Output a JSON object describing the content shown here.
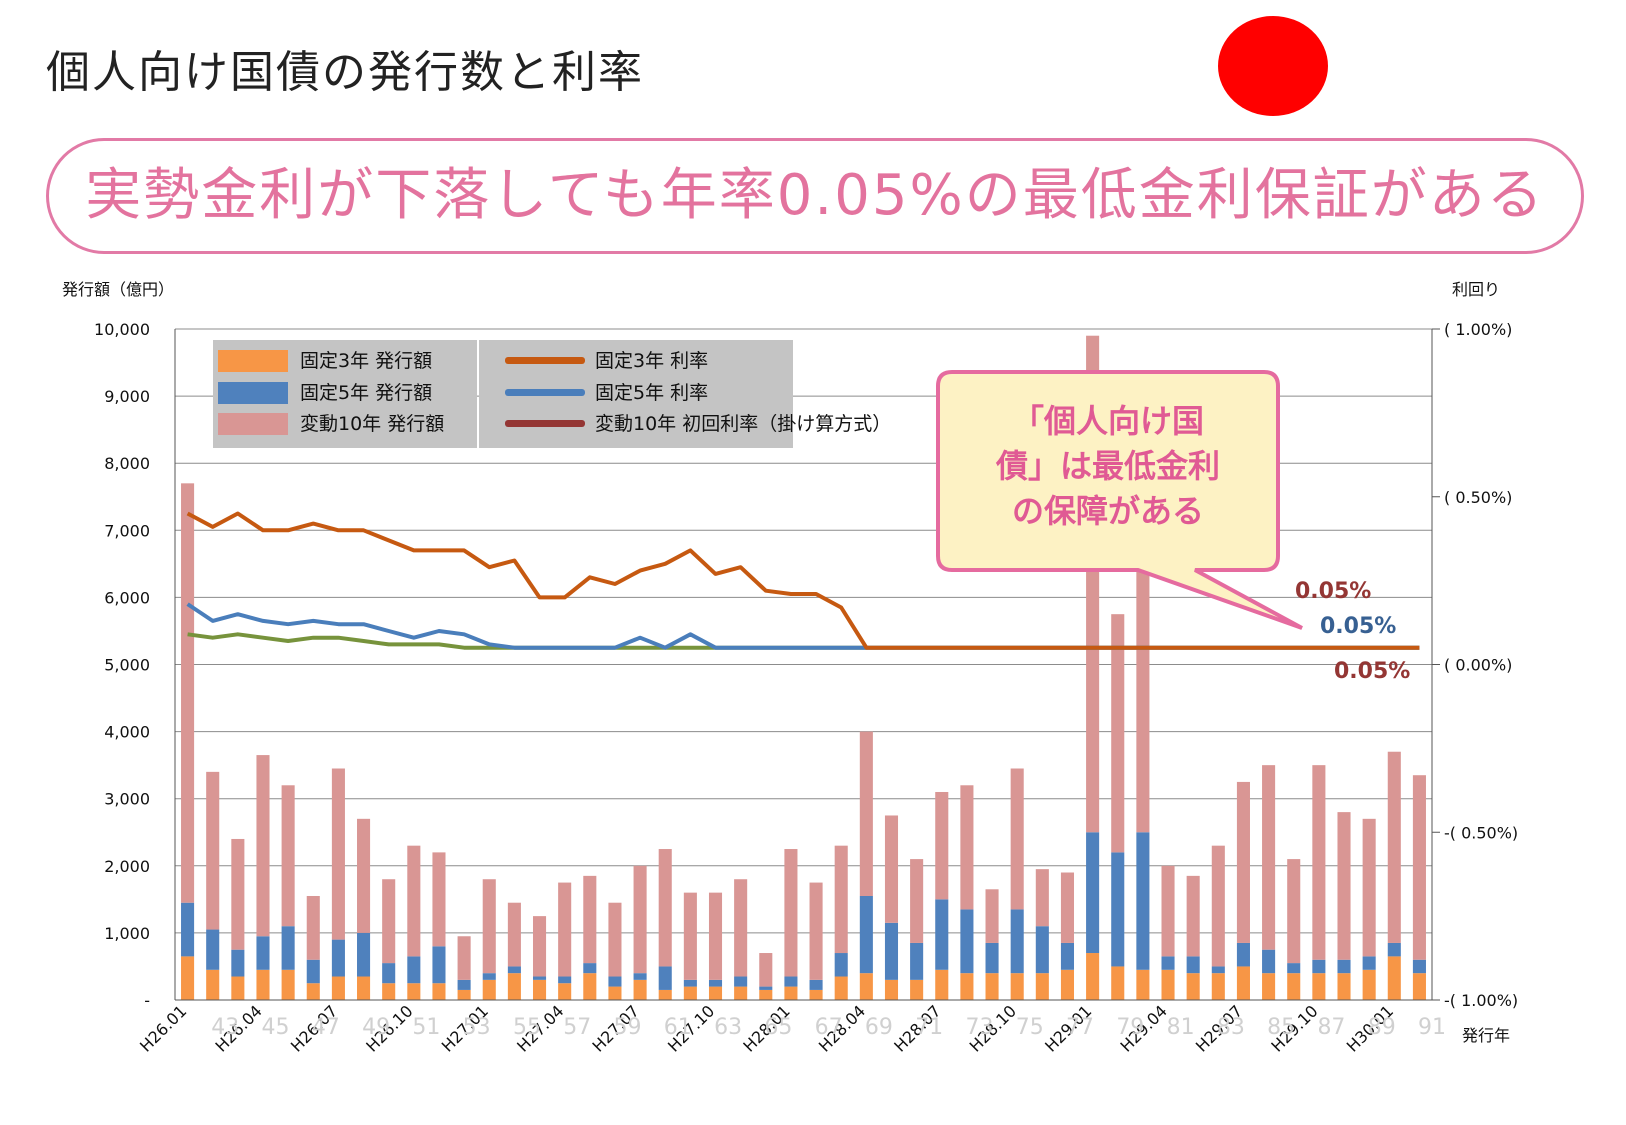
{
  "title": "個人向け国債の発行数と利率",
  "banner_text": "実勢金利が下落しても年率0.05%の最低金利保証がある",
  "callout_text": [
    "「個人向け国",
    "債」は最低金利",
    "の保障がある"
  ],
  "colors": {
    "fixed3_bar": "#f79646",
    "fixed5_bar": "#4f81bd",
    "floating10_bar": "#d99694",
    "fixed3_line": "#c65911",
    "fixed5_line": "#4a7ebb",
    "floating10_line": "#77933c",
    "red_dot": "#ff0000",
    "banner_border": "#e27aa6",
    "banner_text": "#e3739e",
    "callout_fill": "#fdf2c4",
    "callout_border": "#e56b9f",
    "callout_text": "#e05a94"
  },
  "chart_data": {
    "type": "bar+line",
    "y_left_label": "発行額（億円）",
    "y_right_label": "利回り",
    "x_label": "発行年",
    "y_left_ticks": [
      "10,000",
      "9,000",
      "8,000",
      "7,000",
      "6,000",
      "5,000",
      "4,000",
      "3,000",
      "2,000",
      "1,000",
      "-"
    ],
    "y_left_lim": [
      0,
      10000
    ],
    "y_right_ticks": [
      "( 1.00%)",
      "( 0.50%)",
      "( 0.00%)",
      "-( 0.50%)",
      "-( 1.00%)"
    ],
    "y_right_lim": [
      -1.0,
      1.0
    ],
    "x_tick_labels": [
      "H26.01",
      "H26.04",
      "H26.07",
      "H26.10",
      "H27.01",
      "H27.04",
      "H27.07",
      "H27.10",
      "H28.01",
      "H28.04",
      "H28.07",
      "H28.10",
      "H29.01",
      "H29.04",
      "H29.07",
      "H29.10",
      "H30.01"
    ],
    "x_tick_index": [
      0,
      3,
      6,
      9,
      12,
      15,
      18,
      21,
      24,
      27,
      30,
      33,
      36,
      39,
      42,
      45,
      48
    ],
    "faded_tick_labels": [
      "43",
      "45",
      "47",
      "49",
      "51",
      "53",
      "55",
      "57",
      "59",
      "61",
      "63",
      "65",
      "67",
      "69",
      "71",
      "73",
      "75",
      "77",
      "79",
      "81",
      "83",
      "85",
      "87",
      "89",
      "91"
    ],
    "legend": {
      "bars": [
        "固定3年 発行額",
        "固定5年 発行額",
        "変動10年 発行額"
      ],
      "lines": [
        "固定3年 利率",
        "固定5年 利率",
        "変動10年 初回利率（掛け算方式）"
      ]
    },
    "series_bars": [
      {
        "name": "固定3年 発行額",
        "values": [
          650,
          450,
          350,
          450,
          450,
          250,
          350,
          350,
          250,
          250,
          250,
          150,
          300,
          400,
          300,
          250,
          400,
          200,
          300,
          150,
          200,
          200,
          200,
          150,
          200,
          150,
          350,
          400,
          300,
          300,
          450,
          400,
          400,
          400,
          400,
          450,
          700,
          500,
          450,
          450,
          400,
          400,
          500,
          400,
          400,
          400,
          400,
          450,
          650,
          400
        ]
      },
      {
        "name": "固定5年 発行額",
        "values": [
          800,
          600,
          400,
          500,
          650,
          350,
          550,
          650,
          300,
          400,
          550,
          150,
          100,
          100,
          50,
          100,
          150,
          150,
          100,
          350,
          100,
          100,
          150,
          50,
          150,
          150,
          350,
          1150,
          850,
          550,
          1050,
          950,
          450,
          950,
          700,
          400,
          1800,
          1700,
          2050,
          200,
          250,
          100,
          350,
          350,
          150,
          200,
          200,
          200,
          200,
          200
        ]
      },
      {
        "name": "変動10年 発行額",
        "values": [
          6250,
          2350,
          1650,
          2700,
          2100,
          950,
          2550,
          1700,
          1250,
          1650,
          1400,
          650,
          1400,
          950,
          900,
          1400,
          1300,
          1100,
          1600,
          1750,
          1300,
          1300,
          1450,
          500,
          1900,
          1450,
          1600,
          2450,
          1600,
          1250,
          1600,
          1850,
          800,
          2100,
          850,
          1050,
          7400,
          3550,
          5500,
          1350,
          1200,
          1800,
          2400,
          2750,
          1550,
          2900,
          2200,
          2050,
          2850,
          2750
        ]
      }
    ],
    "series_lines": [
      {
        "name": "固定3年 利率",
        "values": [
          0.45,
          0.41,
          0.45,
          0.4,
          0.4,
          0.42,
          0.4,
          0.4,
          0.37,
          0.34,
          0.34,
          0.34,
          0.29,
          0.31,
          0.2,
          0.2,
          0.26,
          0.24,
          0.28,
          0.3,
          0.34,
          0.27,
          0.29,
          0.22,
          0.21,
          0.21,
          0.17,
          0.05,
          0.05,
          0.05,
          0.05,
          0.05,
          0.05,
          0.05,
          0.05,
          0.05,
          0.05,
          0.05,
          0.05,
          0.05,
          0.05,
          0.05,
          0.05,
          0.05,
          0.05,
          0.05,
          0.05,
          0.05,
          0.05,
          0.05
        ]
      },
      {
        "name": "固定5年 利率",
        "values": [
          0.18,
          0.13,
          0.15,
          0.13,
          0.12,
          0.13,
          0.12,
          0.12,
          0.1,
          0.08,
          0.1,
          0.09,
          0.06,
          0.05,
          0.05,
          0.05,
          0.05,
          0.05,
          0.08,
          0.05,
          0.09,
          0.05,
          0.05,
          0.05,
          0.05,
          0.05,
          0.05,
          0.05,
          0.05,
          0.05,
          0.05,
          0.05,
          0.05,
          0.05,
          0.05,
          0.05,
          0.05,
          0.05,
          0.05,
          0.05,
          0.05,
          0.05,
          0.05,
          0.05,
          0.05,
          0.05,
          0.05,
          0.05,
          0.05,
          0.05
        ]
      },
      {
        "name": "変動10年 初回利率（掛け算方式）",
        "values": [
          0.09,
          0.08,
          0.09,
          0.08,
          0.07,
          0.08,
          0.08,
          0.07,
          0.06,
          0.06,
          0.06,
          0.05,
          0.05,
          0.05,
          0.05,
          0.05,
          0.05,
          0.05,
          0.05,
          0.05,
          0.05,
          0.05,
          0.05,
          0.05,
          0.05,
          0.05,
          0.05,
          0.05,
          0.05,
          0.05,
          0.05,
          0.05,
          0.05,
          0.05,
          0.05,
          0.05,
          0.05,
          0.05,
          0.05,
          0.05,
          0.05,
          0.05,
          0.05,
          0.05,
          0.05,
          0.05,
          0.05,
          0.05,
          0.05,
          0.05
        ]
      }
    ],
    "annotations": [
      {
        "text": "0.05%",
        "series": "固定3年 利率",
        "color": "#943634"
      },
      {
        "text": "0.05%",
        "series": "固定5年 利率",
        "color": "#376092"
      },
      {
        "text": "0.05%",
        "series": "変動10年 初回利率（掛け算方式）",
        "color": "#943634"
      }
    ]
  }
}
